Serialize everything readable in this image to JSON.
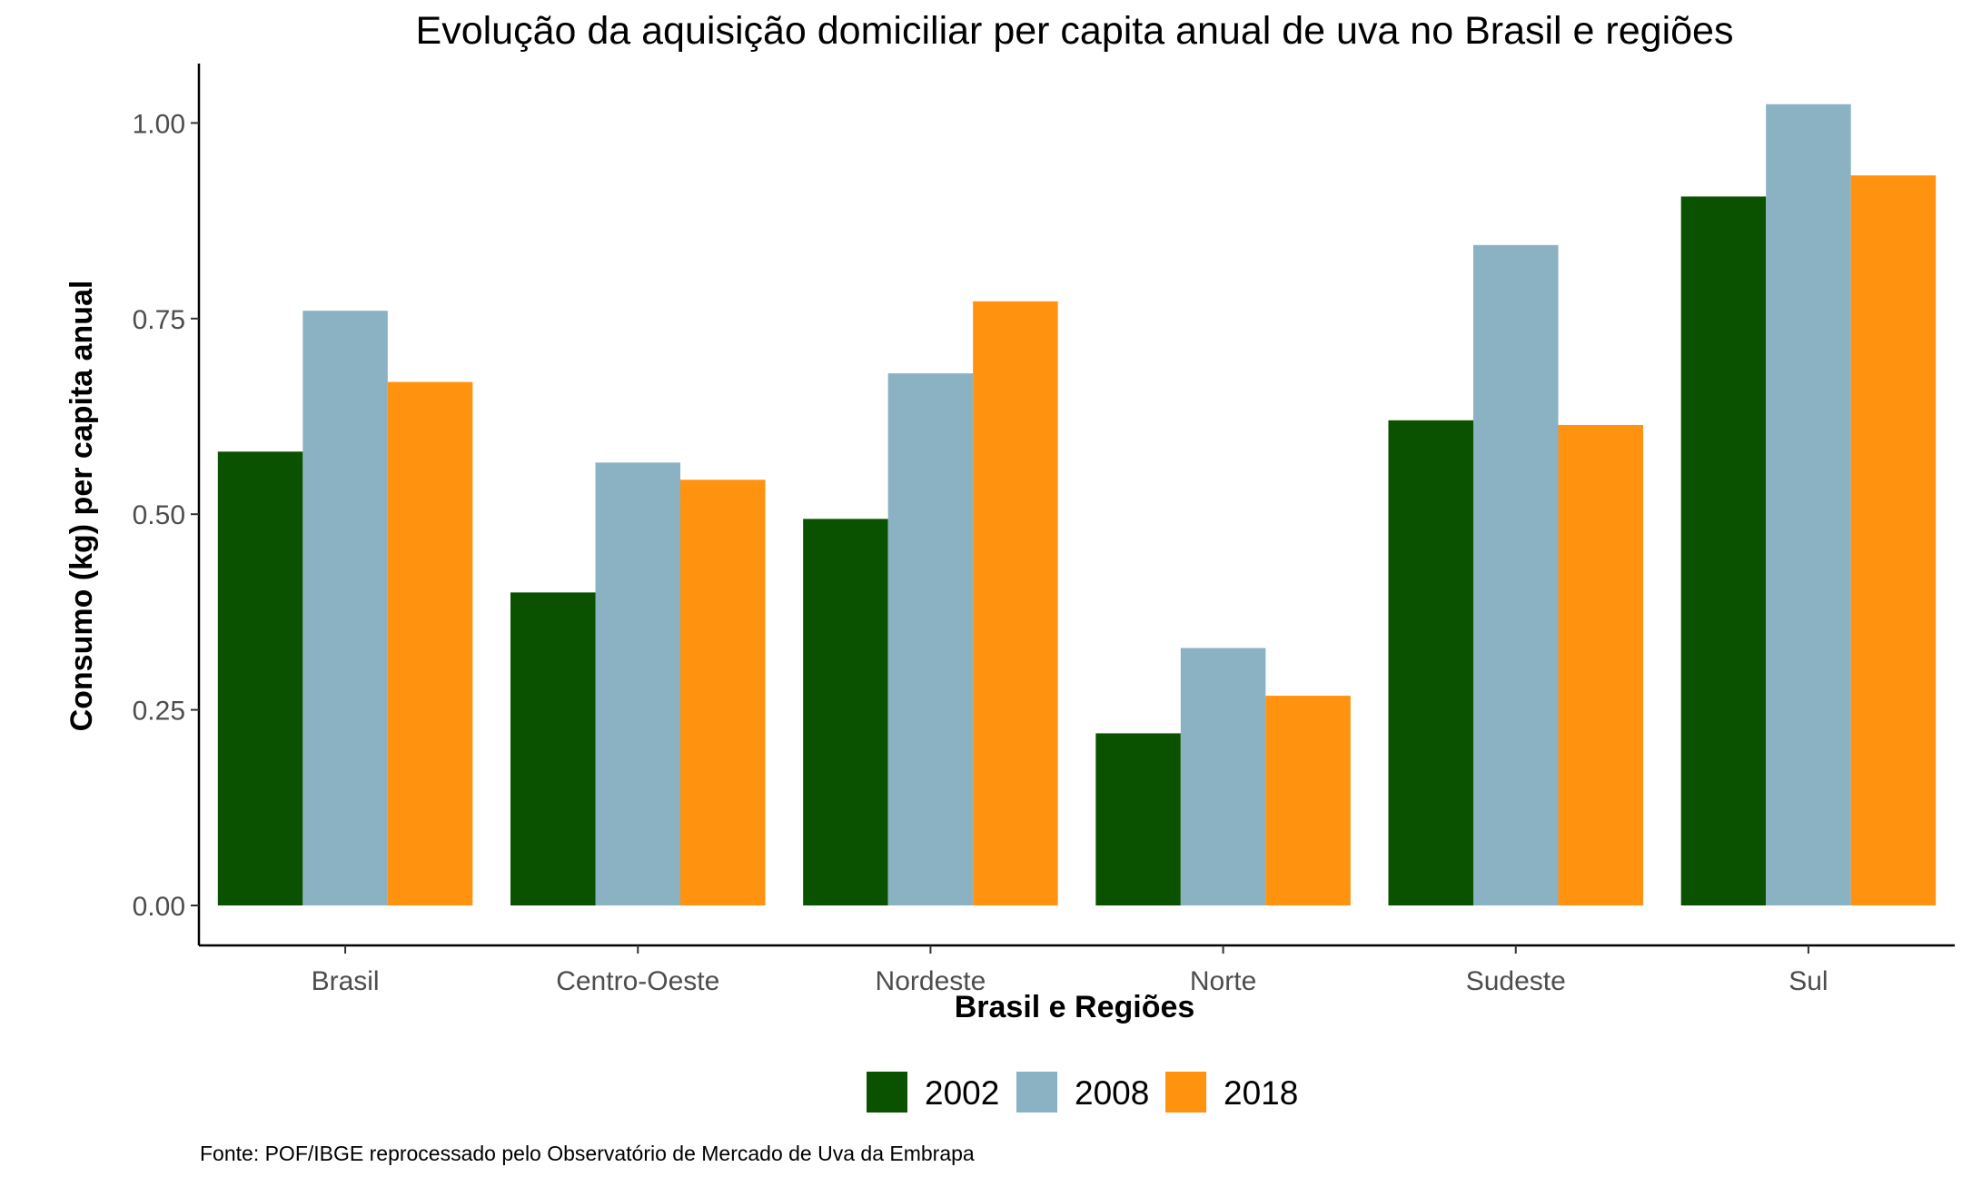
{
  "chart_data": {
    "type": "bar",
    "title": "Evolução da  aquisição domiciliar per capita anual de uva no Brasil e regiões",
    "xlabel": "Brasil e Regiões",
    "ylabel": "Consumo (kg) per capita anual",
    "categories": [
      "Brasil",
      "Centro-Oeste",
      "Nordeste",
      "Norte",
      "Sudeste",
      "Sul"
    ],
    "series": [
      {
        "name": "2002",
        "color": "#0b5200",
        "values": [
          0.58,
          0.4,
          0.494,
          0.22,
          0.62,
          0.906
        ]
      },
      {
        "name": "2008",
        "color": "#8ab2c3",
        "values": [
          0.76,
          0.566,
          0.68,
          0.329,
          0.844,
          1.024
        ]
      },
      {
        "name": "2018",
        "color": "#ff930f",
        "values": [
          0.669,
          0.544,
          0.772,
          0.268,
          0.614,
          0.933
        ]
      }
    ],
    "ylim": [
      0,
      1.0752
    ],
    "yticks": [
      0,
      0.25,
      0.5,
      0.75,
      1.0
    ],
    "ytick_labels": [
      "0.00",
      "0.25",
      "0.50",
      "0.75",
      "1.00"
    ],
    "grid": false,
    "legend_position": "bottom",
    "caption": "Fonte: POF/IBGE reprocessado pelo Observatório de Mercado de Uva da Embrapa"
  }
}
